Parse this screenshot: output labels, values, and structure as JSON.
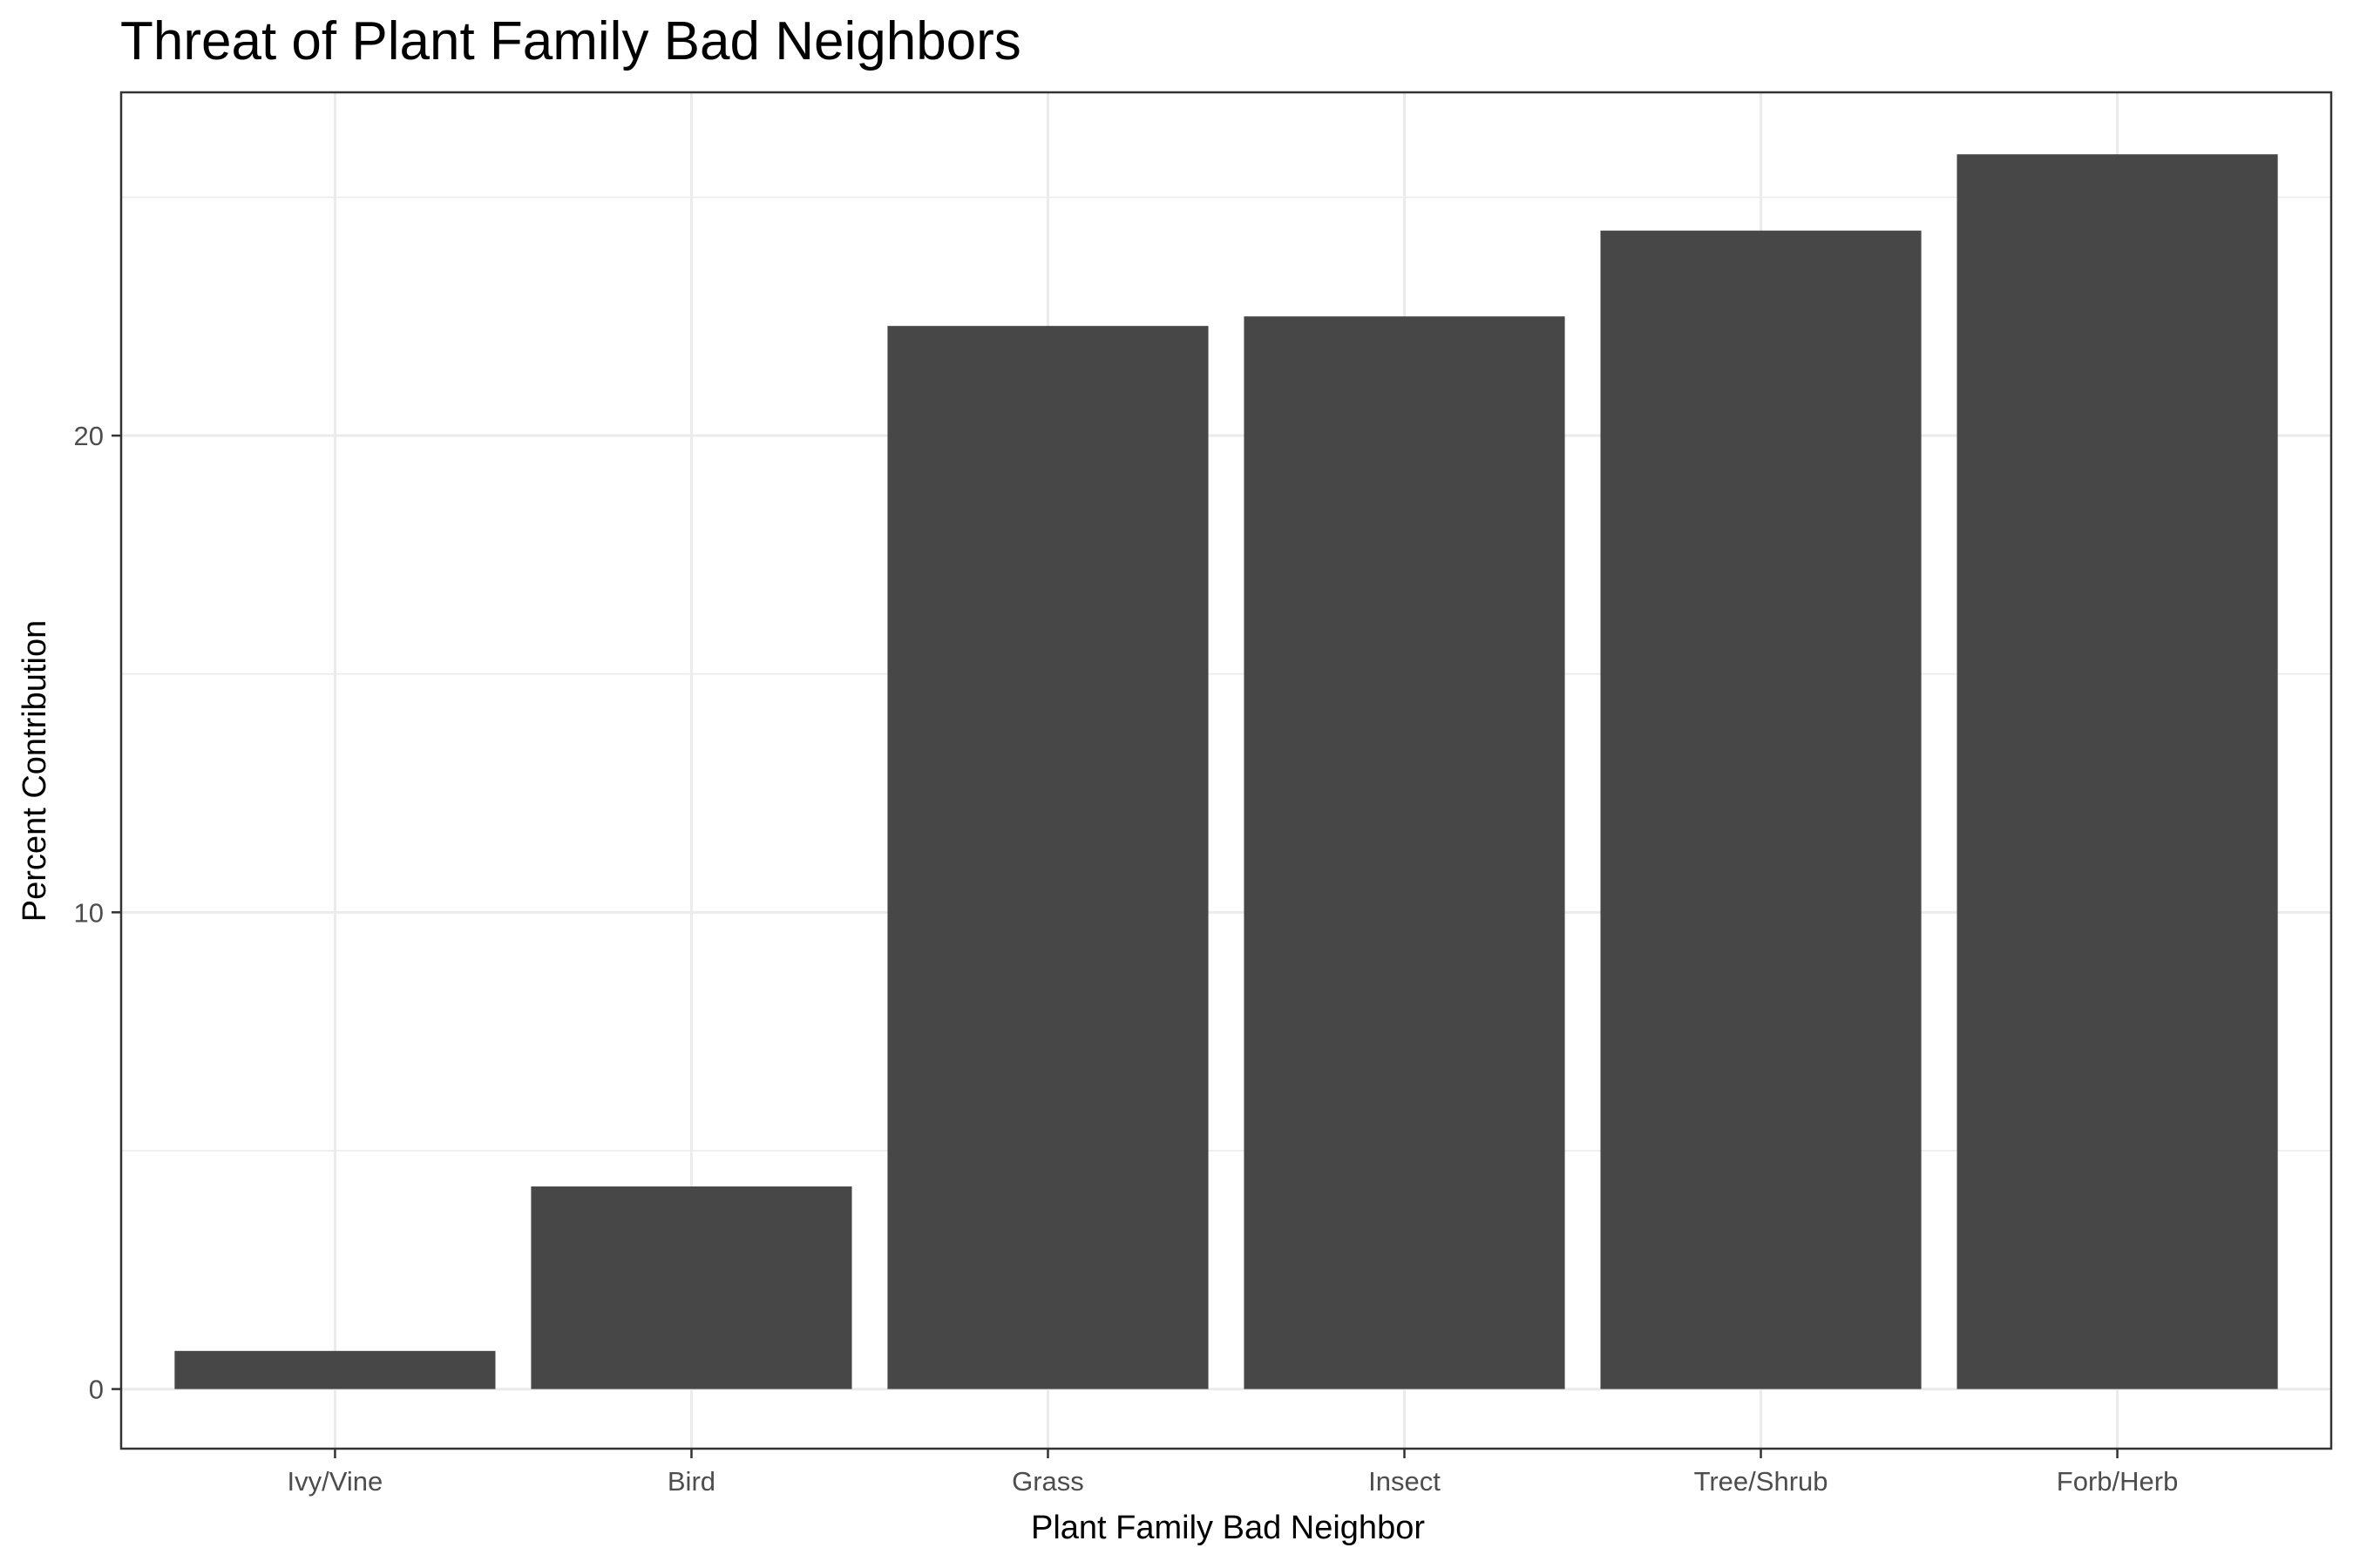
{
  "chart_data": {
    "type": "bar",
    "title": "Threat of Plant Family Bad Neighbors",
    "xlabel": "Plant Family Bad Neighbor",
    "ylabel": "Percent Contribution",
    "categories": [
      "Ivy/Vine",
      "Bird",
      "Grass",
      "Insect",
      "Tree/Shrub",
      "Forb/Herb"
    ],
    "values": [
      0.8,
      4.25,
      22.3,
      22.5,
      24.3,
      25.9
    ],
    "ylim": [
      -1.25,
      27.2
    ],
    "yticks": [
      0,
      10,
      20
    ],
    "yticks_minor": [
      5,
      15,
      25
    ],
    "grid": true,
    "bar_color": "#474747",
    "grid_color": "#ebebeb",
    "panel_border_color": "#333333"
  }
}
